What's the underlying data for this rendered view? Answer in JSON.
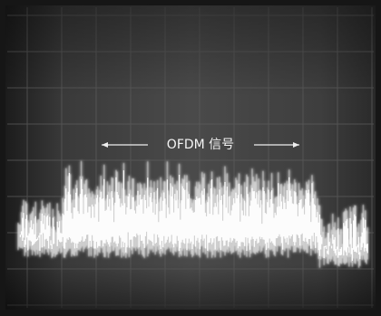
{
  "screen": {
    "annotation": "OFDM 信号"
  }
}
